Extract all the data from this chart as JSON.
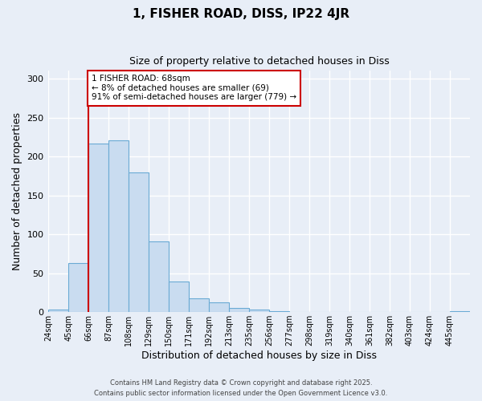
{
  "title": "1, FISHER ROAD, DISS, IP22 4JR",
  "subtitle": "Size of property relative to detached houses in Diss",
  "xlabel": "Distribution of detached houses by size in Diss",
  "ylabel": "Number of detached properties",
  "bin_labels": [
    "24sqm",
    "45sqm",
    "66sqm",
    "87sqm",
    "108sqm",
    "129sqm",
    "150sqm",
    "171sqm",
    "192sqm",
    "213sqm",
    "235sqm",
    "256sqm",
    "277sqm",
    "298sqm",
    "319sqm",
    "340sqm",
    "361sqm",
    "382sqm",
    "403sqm",
    "424sqm",
    "445sqm"
  ],
  "bar_values": [
    3,
    63,
    217,
    221,
    179,
    91,
    39,
    18,
    13,
    5,
    3,
    1,
    0,
    0,
    0,
    0,
    0,
    0,
    0,
    0,
    1
  ],
  "bar_color": "#c9dcf0",
  "bar_edge_color": "#6aaad4",
  "vline_x_bin": 2,
  "vline_color": "#cc0000",
  "ylim": [
    0,
    310
  ],
  "yticks": [
    0,
    50,
    100,
    150,
    200,
    250,
    300
  ],
  "annotation_text": "1 FISHER ROAD: 68sqm\n← 8% of detached houses are smaller (69)\n91% of semi-detached houses are larger (779) →",
  "annotation_box_facecolor": "#ffffff",
  "annotation_box_edgecolor": "#cc0000",
  "footer_line1": "Contains HM Land Registry data © Crown copyright and database right 2025.",
  "footer_line2": "Contains public sector information licensed under the Open Government Licence v3.0.",
  "background_color": "#e8eef7",
  "plot_bg_color": "#e8eef7",
  "grid_color": "#ffffff",
  "figsize": [
    6.0,
    5.0
  ],
  "dpi": 100
}
